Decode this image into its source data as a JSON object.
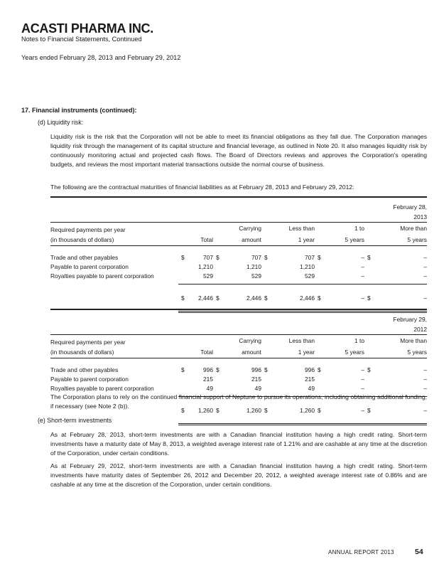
{
  "header": {
    "company": "ACASTI PHARMA INC.",
    "subtitle": "Notes to Financial Statements, Continued",
    "years": "Years ended February 28, 2013 and February 29, 2012"
  },
  "section": {
    "title": "17.  Financial instruments (continued):"
  },
  "liquidity": {
    "label": "(d)  Liquidity risk:",
    "paragraph": "Liquidity risk is the risk that the Corporation will not be able to meet its financial obligations as they fall due. The Corporation manages liquidity risk through the management of its capital structure and financial leverage, as outlined in Note 20. It also manages liquidity risk by continuously monitoring actual and projected cash flows. The Board of Directors reviews and approves the Corporation's operating budgets, and reviews the most important material transactions outside the normal course of business.",
    "intro": "The following are the contractual maturities of financial liabilities as at February 28, 2013 and February 29, 2012:"
  },
  "tables": [
    {
      "date_line1": "February 28,",
      "date_line2": "2013",
      "headers": {
        "label1": "Required payments per year",
        "label2": "(in thousands of dollars)",
        "c1a": "",
        "c1b": "Total",
        "c2a": "Carrying",
        "c2b": "amount",
        "c3a": "Less than",
        "c3b": "1 year",
        "c4a": "1 to",
        "c4b": "5 years",
        "c5a": "More than",
        "c5b": "5 years"
      },
      "rows": [
        {
          "label": "Trade and other payables",
          "cur": "$",
          "v": [
            "707",
            "707",
            "707",
            "–",
            "–"
          ]
        },
        {
          "label": "Payable to parent corporation",
          "cur": "",
          "v": [
            "1,210",
            "1,210",
            "1,210",
            "–",
            "–"
          ]
        },
        {
          "label": "Royalties payable to parent corporation",
          "cur": "",
          "v": [
            "529",
            "529",
            "529",
            "–",
            "–"
          ]
        }
      ],
      "total": {
        "cur": "$",
        "v": [
          "2,446",
          "2,446",
          "2,446",
          "–",
          "–"
        ]
      }
    },
    {
      "date_line1": "February 29,",
      "date_line2": "2012",
      "headers": {
        "label1": "Required payments per year",
        "label2": "(in thousands of dollars)",
        "c1a": "",
        "c1b": "Total",
        "c2a": "Carrying",
        "c2b": "amount",
        "c3a": "Less than",
        "c3b": "1 year",
        "c4a": "1 to",
        "c4b": "5 years",
        "c5a": "More than",
        "c5b": "5 years"
      },
      "rows": [
        {
          "label": "Trade and other payables",
          "cur": "$",
          "v": [
            "996",
            "996",
            "996",
            "–",
            "–"
          ]
        },
        {
          "label": "Payable to parent corporation",
          "cur": "",
          "v": [
            "215",
            "215",
            "215",
            "–",
            "–"
          ]
        },
        {
          "label": "Royalties payable to parent corporation",
          "cur": "",
          "v": [
            "49",
            "49",
            "49",
            "–",
            "–"
          ]
        }
      ],
      "total": {
        "cur": "$",
        "v": [
          "1,260",
          "1,260",
          "1,260",
          "–",
          "–"
        ]
      }
    }
  ],
  "support_note": "The Corporation plans to rely on the continued financial support of Neptune to pursue its operations, including obtaining additional funding, if necessary (see Note 2 (b)).",
  "short_term": {
    "label": "(e)  Short-term investments",
    "para1": "As at February 28, 2013, short-term investments are with a Canadian financial institution having a high credit rating.  Short-term investments have a maturity date of May 8, 2013, a weighted average interest rate of 1.21% and are cashable at any time at the discretion of the Corporation, under certain conditions.",
    "para2": "As at February 29, 2012, short-term investments are with a Canadian financial institution having a high credit rating.  Short-term investments have maturity dates of September 26, 2012 and December 20, 2012, a weighted average interest rate of 0.86% and are cashable at any time at the discretion of the Corporation, under certain conditions."
  },
  "footer": {
    "label": "ANNUAL REPORT 2013",
    "page": "54"
  }
}
